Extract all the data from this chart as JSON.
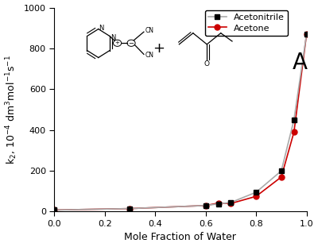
{
  "acetonitrile_x": [
    0.0,
    0.3,
    0.6,
    0.65,
    0.7,
    0.8,
    0.9,
    0.95,
    1.0
  ],
  "acetonitrile_y": [
    8,
    15,
    30,
    38,
    45,
    95,
    200,
    450,
    870
  ],
  "acetone_x": [
    0.0,
    0.3,
    0.6,
    0.65,
    0.7,
    0.8,
    0.9,
    0.95,
    1.0
  ],
  "acetone_y": [
    8,
    15,
    30,
    42,
    40,
    75,
    170,
    390,
    870
  ],
  "acetonitrile_line_color": "#aaaaaa",
  "acetonitrile_marker_color": "#000000",
  "acetone_line_color": "#cc0000",
  "acetone_marker_color": "#cc0000",
  "xlabel": "Mole Fraction of Water",
  "ylim": [
    0,
    1000
  ],
  "xlim": [
    0.0,
    1.0
  ],
  "label_A": "A",
  "legend_acetonitrile": "Acetonitrile",
  "legend_acetone": "Acetone",
  "background_color": "#ffffff",
  "axis_fontsize": 9,
  "tick_fontsize": 8,
  "legend_fontsize": 8,
  "A_fontsize": 20
}
